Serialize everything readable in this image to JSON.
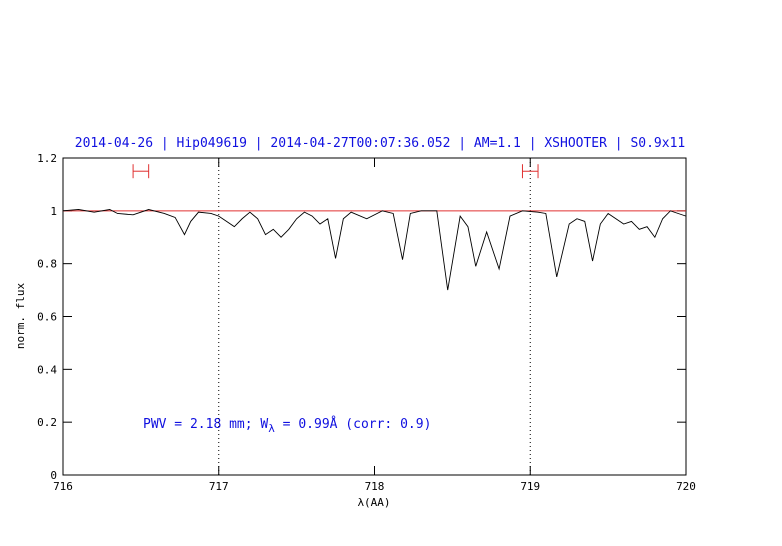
{
  "chart_data": {
    "type": "line",
    "title": "2014-04-26 | Hip049619 | 2014-04-27T00:07:36.052 | AM=1.1 | XSHOOTER | S0.9x11",
    "x_label": "λ(AA)",
    "y_label": "norm. flux",
    "annotation": [
      "PWV = 2.18 mm; W",
      "λ",
      " = 0.99Å (corr: 0.9)"
    ],
    "xlim": [
      716,
      720
    ],
    "ylim": [
      0,
      1.2
    ],
    "xticks": [
      716,
      717,
      718,
      719,
      720
    ],
    "yticks": [
      0,
      0.2,
      0.4,
      0.6,
      0.8,
      1,
      1.2
    ],
    "vlines": [
      717,
      719
    ],
    "continuum": {
      "value": 1,
      "color": "#e03030"
    },
    "ranges": [
      {
        "x": [
          716.45,
          716.55
        ],
        "y": 1.15
      },
      {
        "x": [
          718.95,
          719.05
        ],
        "y": 1.15
      }
    ],
    "series": [
      {
        "color": "#000000",
        "x": [
          716.0,
          716.1,
          716.2,
          716.3,
          716.35,
          716.45,
          716.55,
          716.65,
          716.72,
          716.78,
          716.82,
          716.87,
          716.95,
          717.0,
          717.05,
          717.1,
          717.15,
          717.2,
          717.25,
          717.3,
          717.35,
          717.4,
          717.45,
          717.5,
          717.55,
          717.6,
          717.65,
          717.7,
          717.75,
          717.8,
          717.85,
          717.95,
          718.05,
          718.12,
          718.18,
          718.23,
          718.3,
          718.4,
          718.47,
          718.55,
          718.6,
          718.65,
          718.72,
          718.8,
          718.87,
          718.95,
          719.05,
          719.1,
          719.17,
          719.25,
          719.3,
          719.35,
          719.4,
          719.45,
          719.5,
          719.55,
          719.6,
          719.65,
          719.7,
          719.75,
          719.8,
          719.85,
          719.9,
          720.0
        ],
        "values": [
          1.0,
          1.005,
          0.995,
          1.005,
          0.99,
          0.985,
          1.005,
          0.99,
          0.975,
          0.91,
          0.96,
          0.995,
          0.99,
          0.98,
          0.96,
          0.94,
          0.97,
          0.995,
          0.97,
          0.91,
          0.93,
          0.9,
          0.93,
          0.97,
          0.995,
          0.98,
          0.95,
          0.97,
          0.82,
          0.97,
          0.995,
          0.97,
          1.0,
          0.99,
          0.815,
          0.99,
          1.0,
          1.0,
          0.7,
          0.98,
          0.94,
          0.79,
          0.92,
          0.78,
          0.98,
          1.0,
          0.995,
          0.99,
          0.75,
          0.95,
          0.97,
          0.96,
          0.81,
          0.95,
          0.99,
          0.97,
          0.95,
          0.96,
          0.93,
          0.94,
          0.9,
          0.97,
          1.0,
          0.98
        ]
      }
    ]
  }
}
